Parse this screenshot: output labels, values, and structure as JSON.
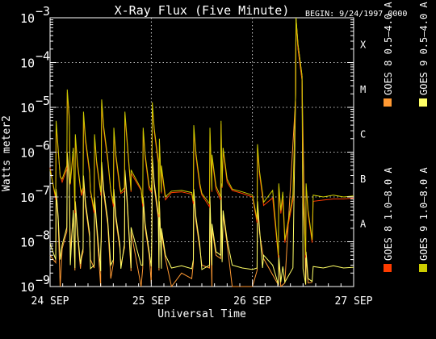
{
  "chart_data": {
    "type": "line",
    "title": "X-Ray Flux (Five Minute)",
    "begin_label": "BEGIN: 9/24/1997 0000",
    "xlabel": "Universal Time",
    "ylabel": "Watts meter2",
    "yscale": "log",
    "ylim": [
      1e-09,
      0.001
    ],
    "xlim_days": [
      0,
      3
    ],
    "y_tick_labels": [
      {
        "value": 1e-09,
        "base": "10",
        "exp": "−9"
      },
      {
        "value": 1e-08,
        "base": "10",
        "exp": "−8"
      },
      {
        "value": 1e-07,
        "base": "10",
        "exp": "−7"
      },
      {
        "value": 1e-06,
        "base": "10",
        "exp": "−6"
      },
      {
        "value": 1e-05,
        "base": "10",
        "exp": "−5"
      },
      {
        "value": 0.0001,
        "base": "10",
        "exp": "−4"
      },
      {
        "value": 0.001,
        "base": "10",
        "exp": "−3"
      }
    ],
    "x_tick_labels": [
      {
        "day": 0,
        "label": "24 SEP"
      },
      {
        "day": 1,
        "label": "25 SEP"
      },
      {
        "day": 2,
        "label": "26 SEP"
      },
      {
        "day": 3,
        "label": "27 SEP"
      }
    ],
    "flare_classes": [
      {
        "label": "X",
        "value": 0.0001
      },
      {
        "label": "M",
        "value": 1e-05
      },
      {
        "label": "C",
        "value": 1e-06
      },
      {
        "label": "B",
        "value": 1e-07
      },
      {
        "label": "A",
        "value": 1e-08
      }
    ],
    "grid": "dotted",
    "legend_position": "right",
    "series": [
      {
        "name": "GOES 8 1.0–8.0 A",
        "color": "#ff3c00",
        "x": [
          0,
          0.1,
          0.2,
          0.3,
          0.4,
          0.5,
          0.6,
          0.7,
          0.8,
          0.9,
          1.0,
          1.1,
          1.2,
          1.3,
          1.4,
          1.5,
          1.6,
          1.7,
          1.8,
          1.9,
          2.0,
          2.1,
          2.2,
          2.3,
          2.4,
          2.5,
          2.6,
          2.7,
          2.8,
          2.9,
          3.0
        ],
        "y": [
          4.5e-07,
          3e-07,
          1.9e-07,
          1.5e-07,
          1.3e-07,
          1.25e-07,
          1.35e-07,
          1.2e-07,
          1.3e-07,
          1.4e-07,
          1.3e-07,
          1.2e-07,
          1.25e-07,
          1.3e-07,
          1.15e-07,
          1.1e-07,
          1.3e-07,
          1.6e-07,
          1.4e-07,
          1.2e-07,
          1e-07,
          1e-07,
          9.5e-08,
          9e-08,
          8.5e-08,
          8e-08,
          8e-08,
          8.5e-08,
          9e-08,
          9e-08,
          9.5e-08
        ]
      },
      {
        "name": "GOES 8 0.5–4.0 A",
        "color": "#ff9933",
        "x": [
          0,
          0.1,
          0.2,
          0.3,
          0.4,
          0.5,
          0.6,
          0.7,
          0.8,
          0.9,
          1.0,
          1.1,
          1.2,
          1.3,
          1.4,
          1.5,
          1.6,
          1.7,
          1.8,
          1.9,
          2.0
        ],
        "y": [
          5e-09,
          1e-09,
          6e-09,
          2.5e-09,
          4e-09,
          1e-09,
          1.5e-09,
          3e-09,
          2.2e-09,
          1e-09,
          1.2e-09,
          5e-09,
          1e-09,
          2e-09,
          1.5e-09,
          3e-09,
          1e-09,
          4e-09,
          1e-09,
          1e-09,
          1e-09
        ]
      },
      {
        "name": "GOES 9 1.0–8.0 A",
        "color": "#cccc00",
        "x": [
          0,
          0.1,
          0.2,
          0.3,
          0.4,
          0.5,
          0.6,
          0.7,
          0.8,
          0.9,
          1.0,
          1.1,
          1.2,
          1.3,
          1.4,
          1.5,
          1.6,
          1.7,
          1.8,
          1.9,
          2.0,
          2.1,
          2.2,
          2.3,
          2.4,
          2.5,
          2.6,
          2.7,
          2.8,
          2.9,
          3.0
        ],
        "y": [
          4e-07,
          2.8e-07,
          2e-07,
          1.6e-07,
          1.4e-07,
          1.3e-07,
          1.4e-07,
          1.3e-07,
          1.4e-07,
          1.5e-07,
          1.4e-07,
          1.3e-07,
          1.35e-07,
          1.4e-07,
          1.25e-07,
          1.2e-07,
          1.4e-07,
          1.7e-07,
          1.5e-07,
          1.3e-07,
          1.1e-07,
          1.2e-07,
          1.4e-07,
          1.3e-07,
          1.1e-07,
          1e-07,
          1.1e-07,
          1e-07,
          1.1e-07,
          1e-07,
          1.05e-07
        ]
      },
      {
        "name": "GOES 9 0.5–4.0 A",
        "color": "#ffff66",
        "x": [
          0,
          0.1,
          0.2,
          0.3,
          0.4,
          0.5,
          0.6,
          0.7,
          0.8,
          0.9,
          1.0,
          1.1,
          1.2,
          1.3,
          1.4,
          1.5,
          1.6,
          1.7,
          1.8,
          1.9,
          2.0,
          2.1,
          2.2,
          2.3,
          2.4,
          2.5,
          2.6,
          2.7,
          2.8,
          2.9,
          3.0
        ],
        "y": [
          9e-09,
          4e-09,
          3e-09,
          3.2e-09,
          2.5e-09,
          2.2e-09,
          3e-09,
          2.5e-09,
          2.6e-09,
          3e-09,
          2.8e-09,
          2.5e-09,
          2.6e-09,
          2.9e-09,
          2.5e-09,
          2.4e-09,
          3e-09,
          3.5e-09,
          3e-09,
          2.6e-09,
          2.4e-09,
          2.6e-09,
          3e-09,
          2.8e-09,
          2.6e-09,
          2.5e-09,
          2.8e-09,
          2.6e-09,
          2.9e-09,
          2.6e-09,
          2.7e-09
        ]
      }
    ],
    "flares": [
      {
        "day": 0.06,
        "g9_long": 5e-06,
        "g9_short": 1.5e-07
      },
      {
        "day": 0.17,
        "g9_long": 2.5e-05,
        "g9_short": 1e-06
      },
      {
        "day": 0.25,
        "g9_long": 2.5e-06,
        "g9_short": 8e-08
      },
      {
        "day": 0.33,
        "g9_long": 8e-06,
        "g9_short": 3e-07
      },
      {
        "day": 0.44,
        "g9_long": 2.5e-06,
        "g9_short": 1e-07
      },
      {
        "day": 0.51,
        "g9_long": 1.5e-05,
        "g9_short": 6e-07
      },
      {
        "day": 0.63,
        "g9_long": 3.5e-06,
        "g9_short": 1.5e-07
      },
      {
        "day": 0.74,
        "g9_long": 8e-06,
        "g9_short": 4e-07
      },
      {
        "day": 0.92,
        "g9_long": 3.5e-06,
        "g9_short": 1e-07
      },
      {
        "day": 1.01,
        "g9_long": 1.3e-05,
        "g9_short": 8e-07
      },
      {
        "day": 1.08,
        "g9_long": 2e-06,
        "g9_short": 8e-08
      },
      {
        "day": 1.42,
        "g9_long": 4e-06,
        "g9_short": 1.5e-07
      },
      {
        "day": 1.58,
        "g9_long": 3.5e-06,
        "g9_short": 1e-07
      },
      {
        "day": 1.69,
        "g9_long": 5e-06,
        "g9_short": 2e-07
      },
      {
        "day": 2.05,
        "g9_long": 1.5e-06,
        "g9_short": 8e-08
      },
      {
        "day": 2.26,
        "g9_long": 2e-07,
        "g9_short": 5e-09
      },
      {
        "day": 2.43,
        "g9_long": 0.001,
        "g9_short": 0.001
      },
      {
        "day": 2.53,
        "g9_long": 2e-07,
        "g9_short": 6e-09
      }
    ]
  }
}
